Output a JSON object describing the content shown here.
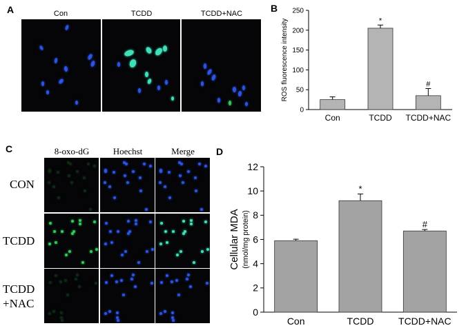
{
  "panelA": {
    "label": "A",
    "columns": [
      "Con",
      "TCDD",
      "TCDD+NAC"
    ]
  },
  "panelB": {
    "label": "B"
  },
  "panelC": {
    "label": "C",
    "columns": [
      "8-oxo-dG",
      "Hoechst",
      "Merge"
    ],
    "rows": [
      {
        "lines": [
          "CON"
        ]
      },
      {
        "lines": [
          "TCDD"
        ]
      },
      {
        "lines": [
          "TCDD",
          "+NAC"
        ]
      }
    ]
  },
  "panelD": {
    "label": "D"
  },
  "chart_data": [
    {
      "type": "bar",
      "panel": "B",
      "categories": [
        "Con",
        "TCDD",
        "TCDD+NAC"
      ],
      "values": [
        25,
        205,
        35
      ],
      "errors": [
        7,
        8,
        18
      ],
      "annotations": [
        "",
        "*",
        "#"
      ],
      "ylabel": "ROS fluorescence intensity",
      "yticks": [
        0,
        50,
        100,
        150,
        200,
        250
      ],
      "ylim": [
        0,
        250
      ],
      "bar_color": "#b4b4b4"
    },
    {
      "type": "bar",
      "panel": "D",
      "categories": [
        "Con",
        "TCDD",
        "TCDD+NAC"
      ],
      "values": [
        5.9,
        9.2,
        6.7
      ],
      "errors": [
        0.12,
        0.55,
        0.12
      ],
      "annotations": [
        "",
        "*",
        "#"
      ],
      "ylabel": "Cellular MDA",
      "ylabel2": "(nmol/mg protein)",
      "yticks": [
        0,
        2,
        4,
        6,
        8,
        10,
        12
      ],
      "ylim": [
        0,
        12
      ],
      "bar_color": "#a3a3a3"
    }
  ]
}
